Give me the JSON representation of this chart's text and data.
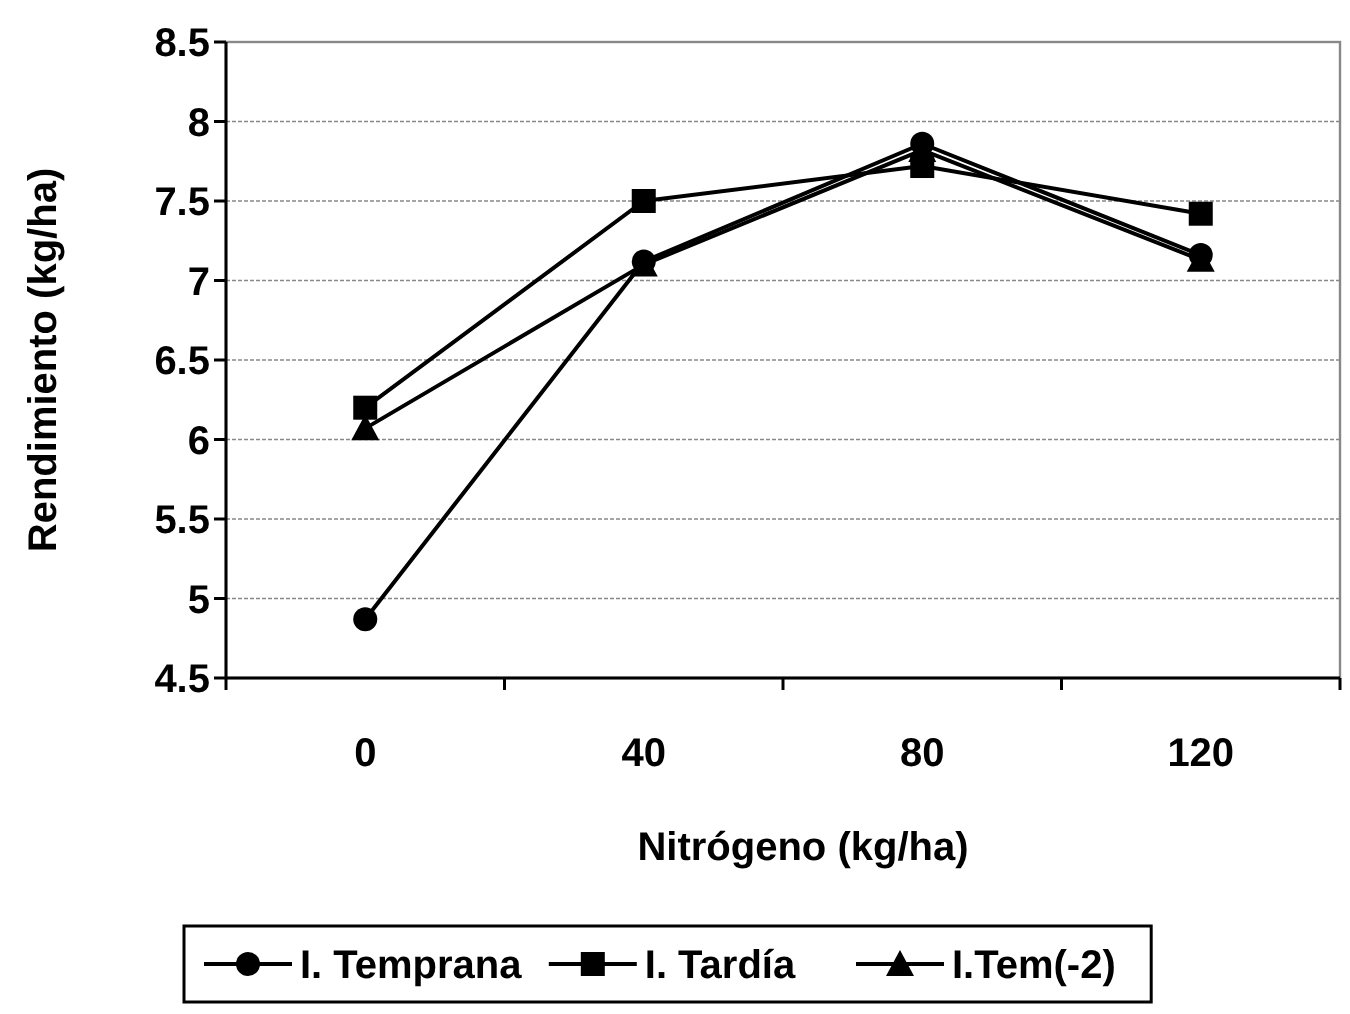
{
  "chart_data": {
    "type": "line",
    "xlabel": "Nitrógeno (kg/ha)",
    "ylabel": "Rendimiento (kg/ha)",
    "categories": [
      "0",
      "40",
      "80",
      "120"
    ],
    "series": [
      {
        "name": "I. Temprana",
        "color": "#000000",
        "marker": "circle",
        "values": [
          4.87,
          7.12,
          7.86,
          7.16
        ]
      },
      {
        "name": "I. Tardía",
        "color": "#000000",
        "marker": "square",
        "values": [
          6.2,
          7.5,
          7.72,
          7.42
        ]
      },
      {
        "name": "I.Tem(-2)",
        "color": "#000000",
        "marker": "triangle",
        "values": [
          6.07,
          7.1,
          7.82,
          7.13
        ]
      }
    ],
    "ylim": [
      4.5,
      8.5
    ],
    "yticks": [
      4.5,
      5,
      5.5,
      6,
      6.5,
      7,
      7.5,
      8,
      8.5
    ],
    "grid": "y",
    "legend": "bottom",
    "line_style": "solid"
  }
}
